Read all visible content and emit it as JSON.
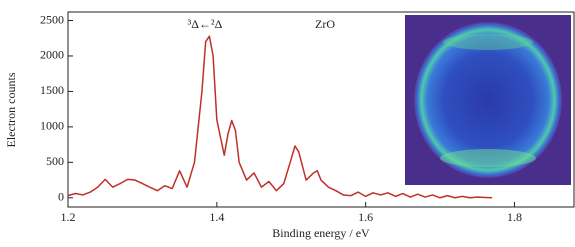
{
  "chart_data": {
    "type": "line",
    "annotations": [
      "³Δ←²Δ",
      "ZrO"
    ],
    "xlabel": "Binding energy / eV",
    "ylabel": "Electron counts",
    "x": [
      1.2,
      1.21,
      1.22,
      1.23,
      1.24,
      1.25,
      1.26,
      1.27,
      1.28,
      1.29,
      1.3,
      1.31,
      1.32,
      1.33,
      1.34,
      1.35,
      1.36,
      1.37,
      1.38,
      1.385,
      1.39,
      1.395,
      1.4,
      1.41,
      1.415,
      1.42,
      1.425,
      1.43,
      1.44,
      1.45,
      1.46,
      1.47,
      1.48,
      1.49,
      1.5,
      1.505,
      1.51,
      1.52,
      1.53,
      1.535,
      1.54,
      1.55,
      1.56,
      1.57,
      1.58,
      1.59,
      1.6,
      1.61,
      1.62,
      1.63,
      1.64,
      1.65,
      1.66,
      1.67,
      1.68,
      1.69,
      1.7,
      1.71,
      1.72,
      1.73,
      1.74,
      1.75,
      1.77
    ],
    "values": [
      30,
      60,
      40,
      80,
      150,
      260,
      150,
      200,
      260,
      250,
      200,
      150,
      100,
      170,
      130,
      380,
      150,
      500,
      1500,
      2200,
      2280,
      2000,
      1100,
      600,
      900,
      1090,
      950,
      500,
      250,
      350,
      150,
      230,
      100,
      200,
      550,
      730,
      650,
      250,
      350,
      380,
      250,
      150,
      100,
      40,
      30,
      80,
      20,
      70,
      40,
      70,
      20,
      60,
      10,
      50,
      10,
      40,
      0,
      30,
      0,
      20,
      0,
      10,
      0
    ],
    "color": "#c0302a",
    "xlim": [
      1.2,
      1.88
    ],
    "xticks": [
      1.2,
      1.4,
      1.6,
      1.8
    ],
    "ylim": [
      -130,
      2620
    ],
    "yticks": [
      0,
      500,
      1000,
      1500,
      2000,
      2500
    ]
  }
}
